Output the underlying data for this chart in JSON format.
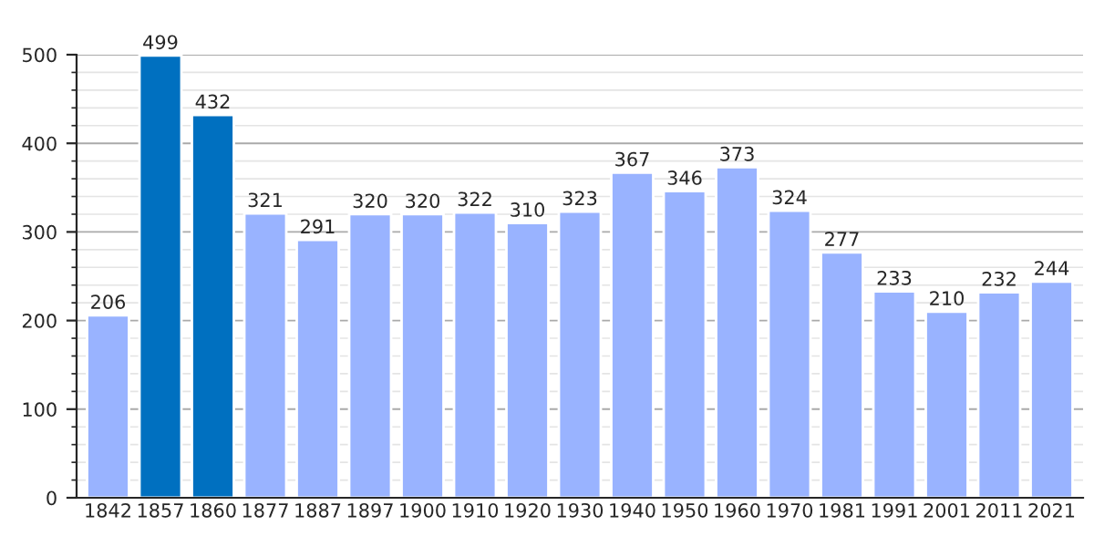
{
  "chart_data": {
    "type": "bar",
    "categories": [
      "1842",
      "1857",
      "1860",
      "1877",
      "1887",
      "1897",
      "1900",
      "1910",
      "1920",
      "1930",
      "1940",
      "1950",
      "1960",
      "1970",
      "1981",
      "1991",
      "2001",
      "2011",
      "2021"
    ],
    "values": [
      206,
      499,
      432,
      321,
      291,
      320,
      320,
      322,
      310,
      323,
      367,
      346,
      373,
      324,
      277,
      233,
      210,
      232,
      244
    ],
    "colors": [
      "#99b3ff",
      "#0070c0",
      "#0070c0",
      "#99b3ff",
      "#99b3ff",
      "#99b3ff",
      "#99b3ff",
      "#99b3ff",
      "#99b3ff",
      "#99b3ff",
      "#99b3ff",
      "#99b3ff",
      "#99b3ff",
      "#99b3ff",
      "#99b3ff",
      "#99b3ff",
      "#99b3ff",
      "#99b3ff",
      "#99b3ff"
    ],
    "ylim": [
      0,
      500
    ],
    "yticks": [
      0,
      100,
      200,
      300,
      400,
      500
    ],
    "grid": "y",
    "data_labels": true
  }
}
